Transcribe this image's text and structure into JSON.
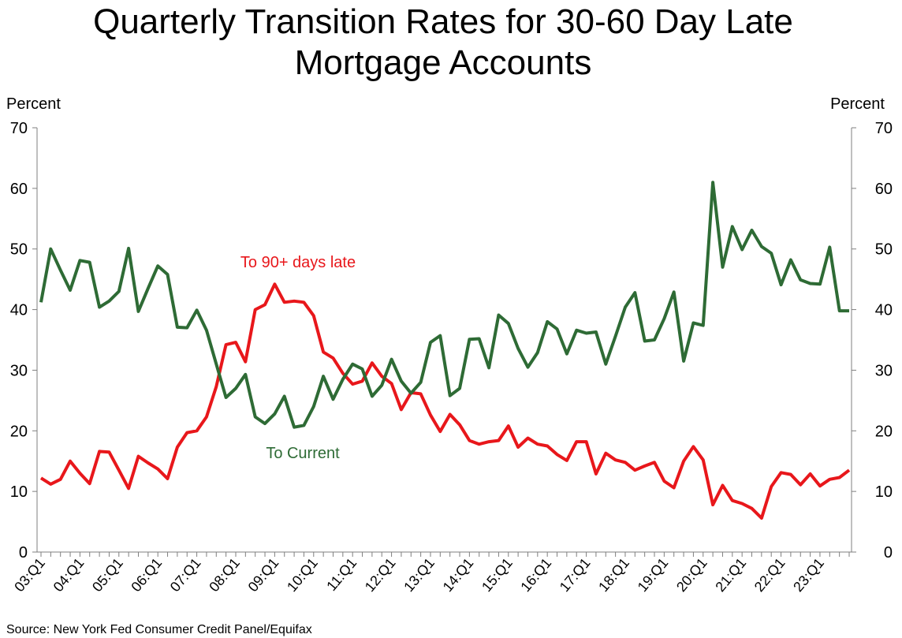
{
  "chart_data": {
    "type": "line",
    "title": "Quarterly Transition Rates for 30-60 Day Late Mortgage Accounts",
    "y_label": "Percent",
    "y2_label": "Percent",
    "source": "Source: New York Fed Consumer Credit Panel/Equifax",
    "categories": [
      "03:Q1",
      null,
      null,
      null,
      "04:Q1",
      null,
      null,
      null,
      "05:Q1",
      null,
      null,
      null,
      "06:Q1",
      null,
      null,
      null,
      "07:Q1",
      null,
      null,
      null,
      "08:Q1",
      null,
      null,
      null,
      "09:Q1",
      null,
      null,
      null,
      "10:Q1",
      null,
      null,
      null,
      "11:Q1",
      null,
      null,
      null,
      "12:Q1",
      null,
      null,
      null,
      "13:Q1",
      null,
      null,
      null,
      "14:Q1",
      null,
      null,
      null,
      "15:Q1",
      null,
      null,
      null,
      "16:Q1",
      null,
      null,
      null,
      "17:Q1",
      null,
      null,
      null,
      "18:Q1",
      null,
      null,
      null,
      "19:Q1",
      null,
      null,
      null,
      "20:Q1",
      null,
      null,
      null,
      "21:Q1",
      null,
      null,
      null,
      "22:Q1",
      null,
      null,
      null,
      "23:Q1",
      null,
      null,
      null
    ],
    "series": [
      {
        "name": "To 90+ days late",
        "color": "#e8171b",
        "values": [
          12.2,
          11.2,
          12.0,
          15.0,
          13.0,
          11.3,
          16.6,
          16.5,
          13.5,
          10.5,
          15.8,
          14.7,
          13.7,
          12.1,
          17.3,
          19.7,
          20.0,
          22.3,
          27.3,
          34.2,
          34.6,
          31.4,
          40.0,
          40.8,
          44.2,
          41.2,
          41.4,
          41.2,
          39.0,
          33.0,
          32.0,
          29.5,
          27.7,
          28.2,
          31.2,
          29.0,
          27.8,
          23.5,
          26.3,
          26.1,
          22.6,
          19.9,
          22.7,
          21.0,
          18.4,
          17.8,
          18.2,
          18.4,
          20.8,
          17.3,
          18.8,
          17.8,
          17.5,
          16.1,
          15.1,
          18.2,
          18.2,
          12.9,
          16.3,
          15.2,
          14.8,
          13.5,
          14.2,
          14.8,
          11.7,
          10.6,
          15.0,
          17.4,
          15.2,
          7.8,
          11.0,
          8.5,
          8.0,
          7.2,
          5.6,
          10.8,
          13.1,
          12.8,
          11.1,
          12.9,
          10.9,
          12.0,
          12.3,
          13.5
        ]
      },
      {
        "name": "To Current",
        "color": "#2e6b35",
        "values": [
          41.2,
          50.0,
          46.5,
          43.2,
          48.1,
          47.8,
          40.4,
          41.4,
          43.0,
          50.1,
          39.7,
          43.5,
          47.2,
          45.8,
          37.1,
          37.0,
          39.9,
          36.6,
          31.0,
          25.5,
          27.0,
          29.3,
          22.3,
          21.2,
          22.8,
          25.7,
          20.6,
          20.9,
          24.0,
          29.0,
          25.2,
          28.5,
          31.0,
          30.2,
          25.7,
          27.5,
          31.8,
          28.2,
          26.2,
          28.0,
          34.6,
          35.7,
          25.8,
          27.0,
          35.1,
          35.2,
          30.4,
          39.1,
          37.7,
          33.6,
          30.5,
          32.9,
          38.0,
          36.8,
          32.7,
          36.6,
          36.1,
          36.3,
          31.0,
          35.6,
          40.4,
          42.8,
          34.8,
          35.0,
          38.5,
          42.9,
          31.5,
          37.8,
          37.4,
          61.0,
          47.0,
          53.7,
          49.9,
          53.1,
          50.4,
          49.3,
          44.1,
          48.2,
          44.9,
          44.3,
          44.2,
          50.3,
          39.8,
          39.8
        ]
      }
    ],
    "ylim": [
      0,
      70
    ],
    "yticks": [
      0,
      10,
      20,
      30,
      40,
      50,
      60,
      70
    ],
    "y2lim": [
      0,
      70
    ],
    "y2ticks": [
      0,
      10,
      20,
      30,
      40,
      50,
      60,
      70
    ],
    "grid": false
  }
}
